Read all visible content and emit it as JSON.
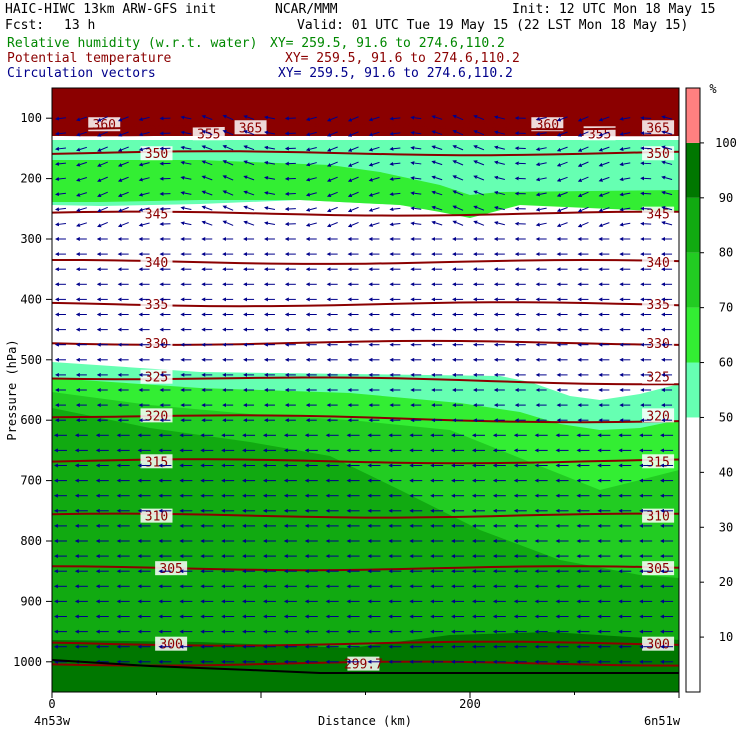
{
  "header": {
    "model": "HAIC-HIWC 13km ARW-GFS init",
    "center": "NCAR/MMM",
    "init": "Init: 12 UTC Mon 18 May 15",
    "fcst_label": "Fcst:",
    "fcst_value": "13 h",
    "valid": "Valid: 01 UTC Tue 19 May 15 (22 LST Mon 18 May 15)",
    "field1": "Relative humidity (w.r.t. water)",
    "field1_xy": "XY= 259.5, 91.6 to 274.6,110.2",
    "field2": "Potential temperature",
    "field2_xy": "XY= 259.5, 91.6 to 274.6,110.2",
    "field3": "Circulation vectors",
    "field3_xy": "XY= 259.5, 91.6 to 274.6,110.2"
  },
  "colors": {
    "rh_fill": {
      "50": "#66ffb2",
      "60": "#33ee33",
      "70": "#22cc22",
      "80": "#11aa11",
      "90": "#007700",
      "100": "#8b0000",
      "ground": "#007700"
    },
    "theta_line": "#8b0000",
    "vector": "#00008b",
    "field1_text": "#008800",
    "field2_text": "#8b0000",
    "field3_text": "#00008b"
  },
  "chart_data": {
    "type": "cross-section",
    "xlabel": "Distance (km)",
    "ylabel": "Pressure (hPa)",
    "xlim": [
      0,
      300
    ],
    "ylim": [
      1050,
      50
    ],
    "x_ticks": [
      0,
      200
    ],
    "x_start_label": "4n53w",
    "x_end_label": "6n51w",
    "y_ticks": [
      100,
      200,
      300,
      400,
      500,
      600,
      700,
      800,
      900,
      1000
    ],
    "colorbar": {
      "unit": "%",
      "levels": [
        10,
        20,
        30,
        40,
        50,
        60,
        70,
        80,
        90,
        100
      ],
      "colors": [
        "#ffffff",
        "#ffffff",
        "#ffffff",
        "#ffffff",
        "#66ffb2",
        "#33ee33",
        "#22cc22",
        "#11aa11",
        "#007700",
        "#ff8080"
      ]
    },
    "theta_contours": [
      {
        "value": 360,
        "pressure": 110,
        "labels": [
          {
            "text": "360",
            "x": 25
          },
          {
            "text": "360",
            "x": 237
          }
        ]
      },
      {
        "value": 355,
        "pressure": 125,
        "labels": [
          {
            "text": "355",
            "x": 75
          },
          {
            "text": "355",
            "x": 262
          }
        ]
      },
      {
        "value": 365,
        "pressure": 115,
        "labels": [
          {
            "text": "365",
            "x": 95
          },
          {
            "text": "365",
            "x": 290
          }
        ]
      },
      {
        "value": 350,
        "pressure": 158,
        "labels": [
          {
            "text": "350",
            "x": 50
          },
          {
            "text": "350",
            "x": 290
          }
        ]
      },
      {
        "value": 345,
        "pressure": 258,
        "labels": [
          {
            "text": "345",
            "x": 50
          },
          {
            "text": "345",
            "x": 290
          }
        ]
      },
      {
        "value": 340,
        "pressure": 338,
        "labels": [
          {
            "text": "340",
            "x": 50
          },
          {
            "text": "340",
            "x": 290
          }
        ]
      },
      {
        "value": 335,
        "pressure": 408,
        "labels": [
          {
            "text": "335",
            "x": 50
          },
          {
            "text": "335",
            "x": 290
          }
        ]
      },
      {
        "value": 330,
        "pressure": 472,
        "labels": [
          {
            "text": "330",
            "x": 50
          },
          {
            "text": "330",
            "x": 290
          }
        ]
      },
      {
        "value": 325,
        "pressure": 528,
        "labels": [
          {
            "text": "325",
            "x": 50
          },
          {
            "text": "325",
            "x": 290
          }
        ]
      },
      {
        "value": 320,
        "pressure": 592,
        "labels": [
          {
            "text": "320",
            "x": 50
          },
          {
            "text": "320",
            "x": 290
          }
        ]
      },
      {
        "value": 315,
        "pressure": 668,
        "labels": [
          {
            "text": "315",
            "x": 50
          },
          {
            "text": "315",
            "x": 290
          }
        ]
      },
      {
        "value": 310,
        "pressure": 758,
        "labels": [
          {
            "text": "310",
            "x": 50
          },
          {
            "text": "310",
            "x": 290
          }
        ]
      },
      {
        "value": 305,
        "pressure": 845,
        "labels": [
          {
            "text": "305",
            "x": 57
          },
          {
            "text": "305",
            "x": 290
          }
        ]
      },
      {
        "value": 300,
        "pressure": 970,
        "labels": [
          {
            "text": "300",
            "x": 57
          },
          {
            "text": "300",
            "x": 290
          }
        ]
      },
      {
        "value": 299.7,
        "pressure": 1003,
        "labels": [
          {
            "text": "299.7",
            "x": 149
          }
        ]
      }
    ],
    "wind": "easterly, roughly uniform, with weak vertical components in upper levels"
  }
}
